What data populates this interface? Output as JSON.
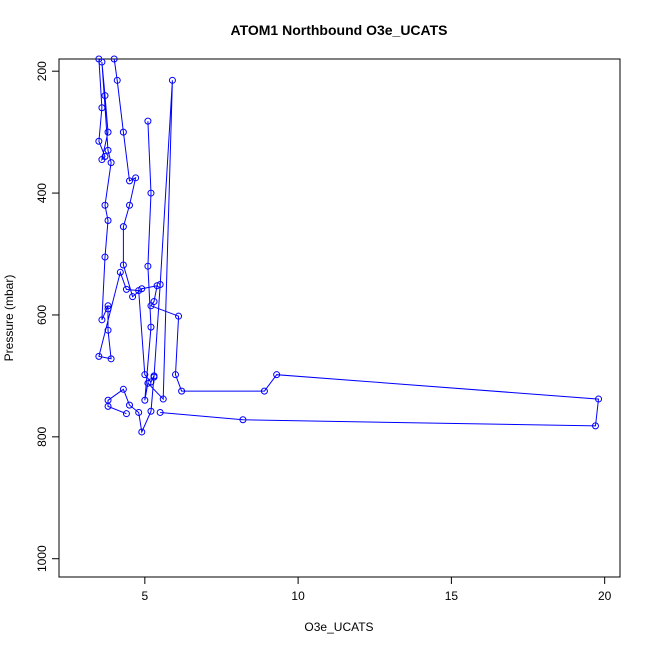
{
  "chart_data": {
    "type": "line",
    "title": "ATOM1 Northbound O3e_UCATS",
    "xlabel": "O3e_UCATS",
    "ylabel": "Pressure (mbar)",
    "xlim": [
      2.2,
      20.5
    ],
    "ylim": [
      1030,
      180
    ],
    "y_reversed": true,
    "x_ticks": [
      5,
      10,
      15,
      20
    ],
    "y_ticks": [
      200,
      400,
      600,
      800,
      1000
    ],
    "grid": false,
    "series_color": "#0000ff",
    "series": [
      {
        "values": [
          [
            3.5,
            180
          ],
          [
            3.6,
            260
          ],
          [
            3.5,
            315
          ],
          [
            3.7,
            340
          ],
          [
            3.6,
            345
          ],
          [
            3.8,
            300
          ],
          [
            3.7,
            240
          ],
          [
            3.6,
            185
          ],
          [
            3.8,
            330
          ],
          [
            3.9,
            350
          ],
          [
            3.7,
            420
          ],
          [
            3.8,
            445
          ],
          [
            3.7,
            505
          ],
          [
            3.6,
            608
          ],
          [
            3.8,
            585
          ],
          [
            3.8,
            590
          ],
          [
            3.8,
            625
          ],
          [
            3.9,
            672
          ],
          [
            3.5,
            668
          ],
          [
            4.2,
            530
          ],
          [
            4.4,
            558
          ],
          [
            4.8,
            560
          ],
          [
            5.0,
            698
          ],
          [
            5.2,
            710
          ],
          [
            5.3,
            700
          ],
          [
            5.2,
            758
          ],
          [
            4.9,
            792
          ],
          [
            4.8,
            760
          ],
          [
            4.5,
            748
          ],
          [
            4.3,
            722
          ],
          [
            3.8,
            740
          ],
          [
            3.8,
            750
          ],
          [
            4.4,
            762
          ]
        ]
      },
      {
        "values": [
          [
            4.0,
            180
          ],
          [
            4.1,
            215
          ],
          [
            4.3,
            300
          ],
          [
            4.5,
            380
          ],
          [
            4.7,
            375
          ],
          [
            4.5,
            420
          ],
          [
            4.3,
            455
          ],
          [
            4.3,
            518
          ],
          [
            4.6,
            570
          ],
          [
            4.9,
            557
          ],
          [
            5.4,
            552
          ],
          [
            5.3,
            578
          ],
          [
            5.2,
            585
          ],
          [
            6.1,
            602
          ],
          [
            6.0,
            698
          ],
          [
            6.2,
            725
          ],
          [
            8.9,
            725
          ],
          [
            9.3,
            698
          ],
          [
            19.8,
            738
          ],
          [
            19.7,
            782
          ],
          [
            8.2,
            772
          ],
          [
            5.5,
            760
          ]
        ]
      },
      {
        "values": [
          [
            5.1,
            282
          ],
          [
            5.2,
            400
          ],
          [
            5.1,
            520
          ],
          [
            5.2,
            620
          ],
          [
            5.0,
            740
          ],
          [
            5.1,
            712
          ],
          [
            5.6,
            738
          ],
          [
            5.9,
            215
          ],
          [
            5.5,
            550
          ],
          [
            5.3,
            702
          ]
        ]
      }
    ]
  }
}
